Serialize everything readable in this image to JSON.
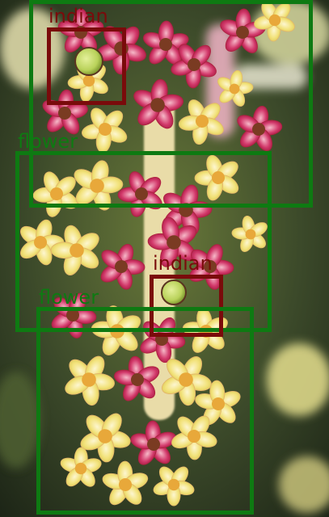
{
  "image": {
    "description_free": true,
    "palette": {
      "background_dark": "#2f3a22",
      "stem": "#e9dca8",
      "petal_yellow": "#f2e27a",
      "petal_cream": "#fbf2c8",
      "petal_pink": "#d2386a",
      "petal_crimson": "#b0203f",
      "bud_green": "#b9d25a"
    }
  },
  "colors": {
    "flower_box": "#0e7a12",
    "indian_box": "#7a0b0b"
  },
  "annotations": [
    {
      "label": "indian",
      "class": "indian"
    },
    {
      "label": "flower",
      "class": "flower"
    },
    {
      "label": "indian",
      "class": "indian"
    },
    {
      "label": "flower",
      "class": "flower"
    }
  ]
}
